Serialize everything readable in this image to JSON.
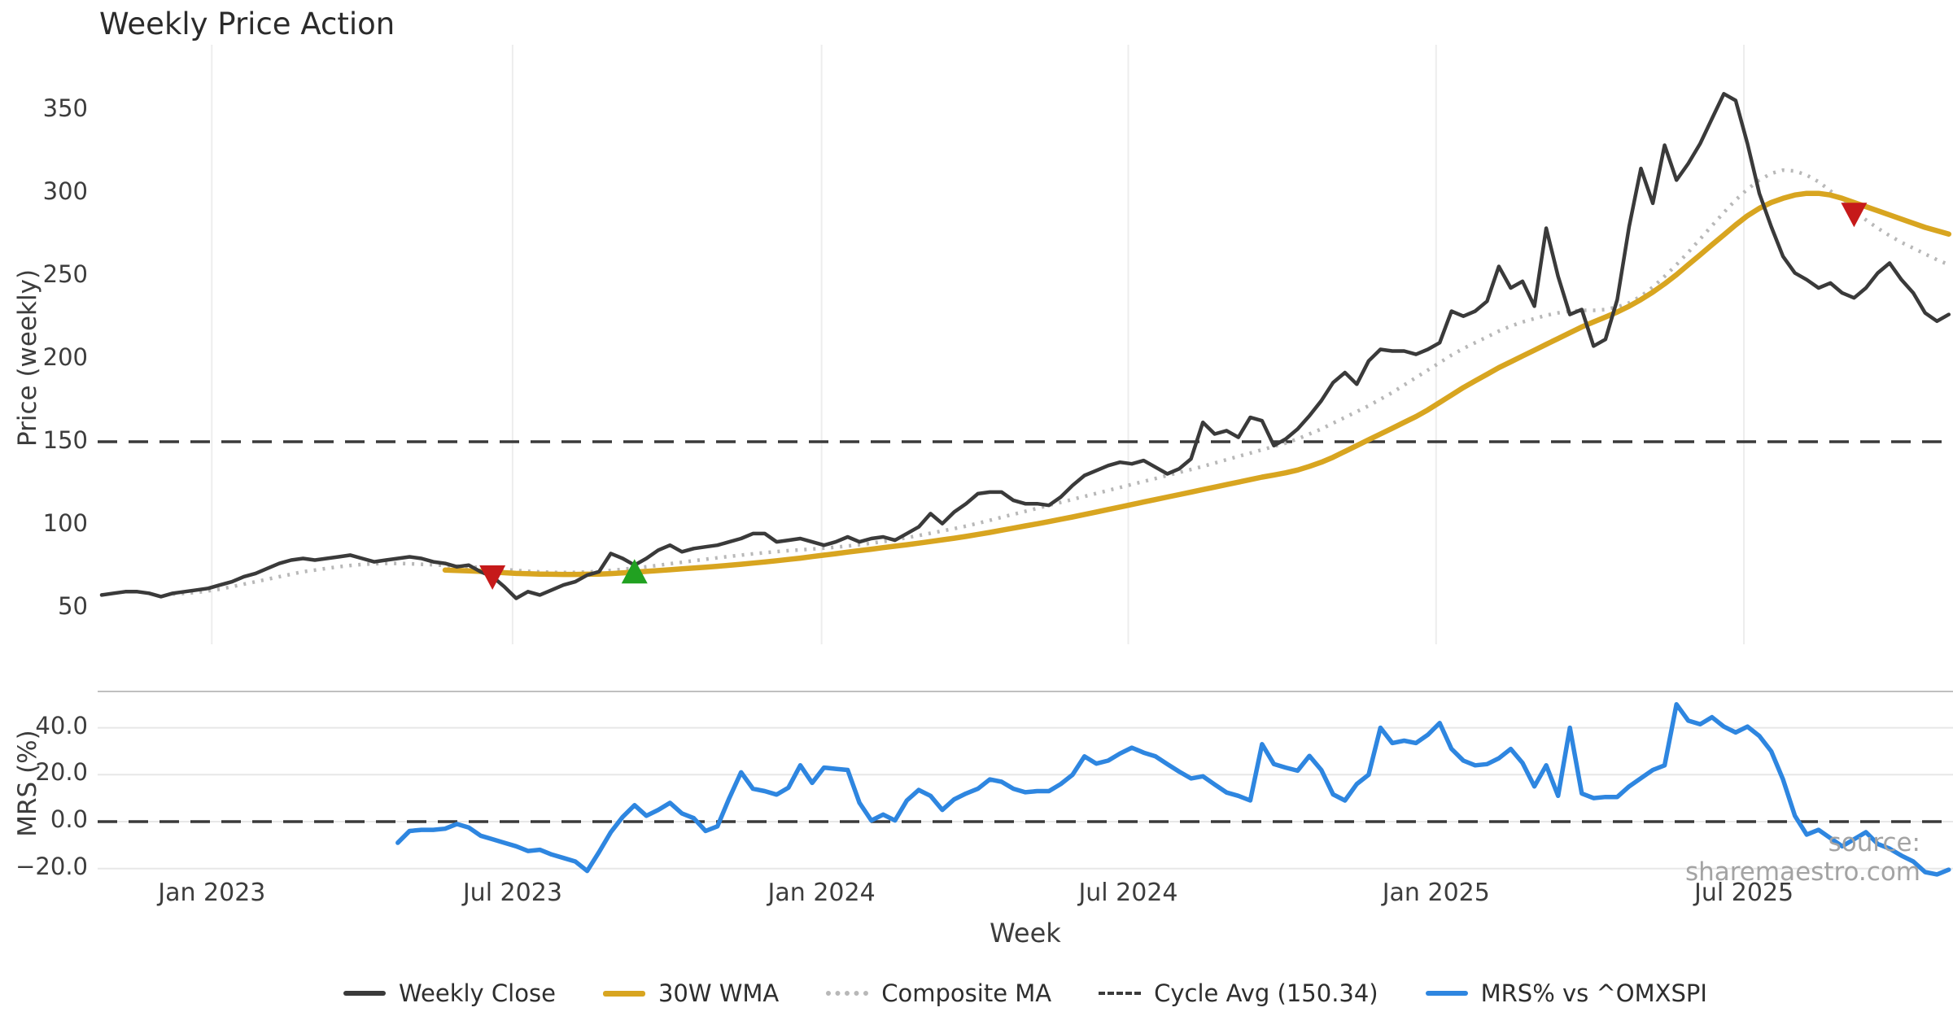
{
  "title": "Weekly Price Action",
  "source_note": "source: sharemaestro.com",
  "axes": {
    "price_label": "Price (weekly)",
    "mrs_label": "MRS (%)",
    "x_label": "Week",
    "price_ticks": [
      350,
      300,
      250,
      200,
      150,
      100,
      50
    ],
    "mrs_ticks": [
      {
        "label": "40.0",
        "value": 40
      },
      {
        "label": "20.0",
        "value": 20
      },
      {
        "label": "0.0",
        "value": 0
      },
      {
        "label": "−20.0",
        "value": -20
      }
    ],
    "x_ticks": [
      {
        "label": "Jan 2023",
        "week": 9.3
      },
      {
        "label": "Jul 2023",
        "week": 34.7
      },
      {
        "label": "Jan 2024",
        "week": 60.8
      },
      {
        "label": "Jul 2024",
        "week": 86.7
      },
      {
        "label": "Jan 2025",
        "week": 112.7
      },
      {
        "label": "Jul 2025",
        "week": 138.7
      }
    ]
  },
  "legend": [
    {
      "label": "Weekly Close",
      "series": "weekly_close",
      "style": "solid-dark"
    },
    {
      "label": "30W WMA",
      "series": "wma_30w",
      "style": "solid-gold"
    },
    {
      "label": "Composite MA",
      "series": "composite_ma",
      "style": "dotted-gray"
    },
    {
      "label": "Cycle Avg (150.34)",
      "series": "cycle_avg",
      "style": "dashed-dark"
    },
    {
      "label": "MRS% vs ^OMXSPI",
      "series": "mrs_pct",
      "style": "solid-blue"
    }
  ],
  "colors": {
    "weekly_close": "#3a3a3a",
    "wma_30w": "#d8a520",
    "composite_ma": "#b8b8b8",
    "cycle_avg": "#3a3a3a",
    "mrs_line": "#2e86e0",
    "sell_marker": "#c61a1a",
    "buy_marker": "#21a121",
    "grid_light": "#ededed",
    "grid_h_light": "#e7e7e7",
    "panel_spine": "#c0c0c0"
  },
  "chart_data": {
    "type": "line",
    "x_unit": "week_index",
    "x_range": [
      0,
      156
    ],
    "panels": [
      {
        "name": "price",
        "ylabel": "Price (weekly)",
        "ylim": [
          29,
          390
        ],
        "yticks": [
          350,
          300,
          250,
          200,
          150,
          100,
          50
        ],
        "grid": "vertical"
      },
      {
        "name": "mrs",
        "ylabel": "MRS (%)",
        "ylim": [
          -25,
          55
        ],
        "yticks": [
          40,
          20,
          0,
          -20
        ],
        "grid": "horizontal"
      }
    ],
    "cycle_avg": 150.34,
    "mrs_zero_line": 0,
    "signals": [
      {
        "type": "sell",
        "week_index": 33,
        "price": 68.5
      },
      {
        "type": "buy",
        "week_index": 45,
        "price": 72.3
      },
      {
        "type": "sell",
        "week_index": 148,
        "price": 287
      }
    ],
    "series": [
      {
        "name": "Weekly Close",
        "panel": "price",
        "values": [
          58,
          59,
          60,
          60,
          59,
          57,
          59,
          60,
          61,
          62,
          64,
          66,
          69,
          71,
          74,
          77,
          79,
          80,
          79,
          80,
          81,
          82,
          80,
          78,
          79,
          80,
          81,
          80,
          78,
          77,
          75,
          76,
          72,
          69,
          63,
          56,
          60,
          58,
          61,
          64,
          66,
          70,
          72,
          83,
          80,
          76,
          80,
          85,
          88,
          84,
          86,
          87,
          88,
          90,
          92,
          95,
          95,
          90,
          91,
          92,
          90,
          88,
          90,
          93,
          90,
          92,
          93,
          91,
          95,
          99,
          107,
          101,
          108,
          113,
          119,
          120,
          120,
          115,
          113,
          113,
          112,
          117,
          124,
          130,
          133,
          136,
          138,
          137,
          139,
          135,
          131,
          134,
          140,
          162,
          155,
          157,
          153,
          165,
          163,
          148,
          152,
          158,
          166,
          175,
          186,
          192,
          185,
          199,
          206,
          205,
          205,
          203,
          206,
          210,
          229,
          226,
          229,
          235,
          256,
          243,
          247,
          232,
          279,
          250,
          227,
          230,
          208,
          212,
          236,
          280,
          315,
          294,
          329,
          308,
          318,
          330,
          345,
          360,
          356,
          330,
          300,
          280,
          262,
          252,
          248,
          243,
          246,
          240,
          237,
          243,
          252,
          258,
          248,
          240,
          228,
          223,
          227
        ]
      },
      {
        "name": "30W WMA",
        "panel": "price",
        "values": [
          null,
          null,
          null,
          null,
          null,
          null,
          null,
          null,
          null,
          null,
          null,
          null,
          null,
          null,
          null,
          null,
          null,
          null,
          null,
          null,
          null,
          null,
          null,
          null,
          null,
          null,
          null,
          null,
          null,
          73,
          72.8,
          72.5,
          72.2,
          71.8,
          71.4,
          71,
          70.8,
          70.6,
          70.5,
          70.4,
          70.4,
          70.5,
          70.6,
          70.9,
          71.3,
          71.8,
          72.2,
          72.7,
          73.2,
          73.7,
          74.2,
          74.7,
          75.3,
          75.9,
          76.5,
          77.2,
          77.9,
          78.6,
          79.4,
          80.2,
          81.1,
          82,
          82.9,
          83.8,
          84.7,
          85.6,
          86.5,
          87.4,
          88.3,
          89.2,
          90.2,
          91.2,
          92.2,
          93.3,
          94.5,
          95.7,
          97,
          98.3,
          99.6,
          100.9,
          102.2,
          103.6,
          105,
          106.5,
          108,
          109.5,
          111,
          112.5,
          114,
          115.5,
          117,
          118.5,
          120,
          121.5,
          123,
          124.5,
          126,
          127.5,
          129,
          130.3,
          131.6,
          133.3,
          135.5,
          138,
          141,
          144.5,
          148,
          151.5,
          155,
          158.5,
          162,
          165.5,
          169.5,
          174,
          178.5,
          183,
          187,
          191,
          195,
          198.5,
          202,
          205.5,
          209,
          212.5,
          216,
          219.5,
          222.5,
          225.5,
          228.5,
          232,
          236,
          240.5,
          245.5,
          251,
          257,
          263,
          269,
          275,
          281,
          286.5,
          291,
          294.5,
          297,
          299,
          300,
          300,
          299,
          297,
          294.5,
          292,
          289.5,
          287,
          284.5,
          282,
          279.5,
          277.5,
          275.5
        ]
      },
      {
        "name": "Composite MA",
        "panel": "price",
        "values": [
          null,
          null,
          null,
          null,
          null,
          null,
          58.5,
          59,
          59.5,
          60.5,
          61.5,
          63,
          64.5,
          66,
          67.5,
          69,
          70.5,
          72,
          73,
          74,
          75,
          75.8,
          76.4,
          76.8,
          77,
          77,
          76.8,
          76.5,
          76.2,
          75.8,
          75.4,
          75,
          74.5,
          74,
          73.4,
          72.8,
          72.3,
          71.9,
          71.6,
          71.5,
          71.6,
          71.8,
          72.2,
          72.8,
          73.5,
          74.2,
          75,
          75.9,
          76.8,
          77.7,
          78.6,
          79.5,
          80.4,
          81.2,
          82,
          82.8,
          83.5,
          84.1,
          84.7,
          85.2,
          85.7,
          86.2,
          86.8,
          87.5,
          88.3,
          89.2,
          90.2,
          91.3,
          92.5,
          93.8,
          95.2,
          96.6,
          98,
          99.5,
          101.2,
          103,
          104.8,
          106.6,
          108.4,
          110.2,
          112,
          113.8,
          115.6,
          117.4,
          119.2,
          121,
          122.8,
          124.6,
          126.4,
          128.2,
          130,
          131.8,
          133.6,
          135.5,
          137.5,
          139.5,
          141.5,
          143.5,
          145.5,
          147.5,
          149.5,
          152,
          155,
          158,
          161.5,
          165,
          168.5,
          172,
          176,
          180,
          184.5,
          189,
          193.5,
          198,
          202.5,
          206.5,
          210,
          213.5,
          217,
          220,
          222.5,
          224.5,
          226.5,
          228,
          229,
          229.5,
          229.5,
          230,
          231.5,
          234,
          238,
          243.5,
          250,
          257,
          264.5,
          272.5,
          280.5,
          288.5,
          296,
          302.5,
          308,
          312,
          314,
          313.5,
          311,
          307,
          301.5,
          295.5,
          289.5,
          284,
          279,
          274.5,
          270.5,
          267,
          263.5,
          260,
          257
        ]
      },
      {
        "name": "MRS% vs ^OMXSPI",
        "panel": "mrs",
        "values": [
          null,
          null,
          null,
          null,
          null,
          null,
          null,
          null,
          null,
          null,
          null,
          null,
          null,
          null,
          null,
          null,
          null,
          null,
          null,
          null,
          null,
          null,
          null,
          null,
          null,
          -9,
          -4,
          -3.5,
          -3.5,
          -3,
          -1,
          -2.5,
          -6,
          -7.5,
          -9,
          -10.5,
          -12.5,
          -12,
          -14,
          -15.5,
          -17,
          -21,
          -13,
          -4.5,
          2,
          7,
          2.5,
          5,
          8,
          3.5,
          1.5,
          -4,
          -2,
          10,
          21,
          14,
          13,
          11.5,
          14.5,
          24,
          16.5,
          23,
          22.5,
          22,
          8,
          0.5,
          3,
          0.5,
          9,
          13.5,
          11,
          5,
          9.5,
          12,
          14,
          18,
          17,
          14,
          12.5,
          13,
          13,
          16,
          20,
          27.8,
          24.7,
          26,
          29,
          31.5,
          29.4,
          27.8,
          24.5,
          21.3,
          18.4,
          19.3,
          15.8,
          12.4,
          11,
          9,
          33,
          24.5,
          23,
          21.7,
          28,
          22,
          11.6,
          9,
          16,
          20,
          40,
          33.5,
          34.5,
          33.5,
          37,
          42,
          31,
          26,
          24,
          24.5,
          27,
          31,
          25,
          15,
          24,
          11,
          40,
          12,
          10,
          10.5,
          10.5,
          15,
          18.5,
          22,
          24,
          50,
          43,
          41.5,
          44.5,
          40.5,
          38,
          40.5,
          36.5,
          30,
          18,
          2.5,
          -5.5,
          -3.5,
          -7,
          -10.5,
          -7.5,
          -4.5,
          -9.5,
          -11.5,
          -14.5,
          -17,
          -21.5,
          -22.5,
          -20.5
        ]
      }
    ]
  }
}
